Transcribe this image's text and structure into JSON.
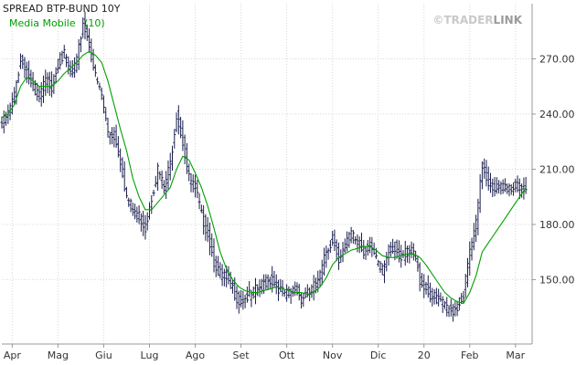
{
  "chart_data": {
    "type": "line",
    "title": "SPREAD BTP-BUND 10Y",
    "watermark": {
      "prefix": "©TRADER",
      "suffix": "LINK"
    },
    "legend": [
      {
        "name": "Media Mobile",
        "param": "(10)",
        "color": "#00a000"
      }
    ],
    "price_color": "#1a1f4d",
    "ma_color": "#00a000",
    "ylim": [
      115,
      300
    ],
    "yticks": [
      150,
      180,
      210,
      240,
      270
    ],
    "ytick_labels": [
      "150.00",
      "180.00",
      "210.00",
      "240.00",
      "270.00"
    ],
    "xtick_labels": [
      "Apr",
      "Mag",
      "Giu",
      "Lug",
      "Ago",
      "Set",
      "Ott",
      "Nov",
      "Dic",
      "20",
      "Feb",
      "Mar"
    ],
    "xtick_index": [
      5,
      27,
      49,
      71,
      93,
      115,
      137,
      159,
      181,
      203,
      225,
      247
    ],
    "x": [
      0,
      3,
      6,
      9,
      12,
      15,
      18,
      21,
      24,
      27,
      30,
      33,
      36,
      39,
      42,
      45,
      48,
      51,
      54,
      57,
      60,
      63,
      66,
      69,
      72,
      75,
      78,
      81,
      84,
      87,
      90,
      93,
      96,
      99,
      102,
      105,
      108,
      111,
      114,
      117,
      120,
      123,
      126,
      129,
      132,
      135,
      138,
      141,
      144,
      147,
      150,
      153,
      156,
      159,
      162,
      165,
      168,
      171,
      174,
      177,
      180,
      183,
      186,
      189,
      192,
      195,
      198,
      201,
      204,
      207,
      210,
      213,
      216,
      219,
      222,
      225,
      228,
      231,
      234,
      237,
      240,
      243,
      246,
      249,
      252
    ],
    "price": [
      235,
      240,
      250,
      270,
      262,
      255,
      250,
      258,
      255,
      268,
      272,
      262,
      268,
      290,
      278,
      260,
      250,
      230,
      228,
      215,
      195,
      188,
      185,
      178,
      195,
      210,
      200,
      213,
      240,
      225,
      205,
      200,
      185,
      175,
      160,
      153,
      152,
      145,
      138,
      140,
      142,
      145,
      148,
      150,
      147,
      143,
      142,
      145,
      140,
      142,
      146,
      152,
      165,
      172,
      162,
      168,
      175,
      170,
      165,
      170,
      160,
      155,
      165,
      168,
      162,
      165,
      165,
      150,
      145,
      140,
      140,
      135,
      133,
      135,
      142,
      165,
      180,
      212,
      203,
      200,
      200,
      200,
      200,
      200,
      200
    ],
    "ma": [
      238,
      240,
      245,
      255,
      260,
      258,
      255,
      255,
      255,
      258,
      262,
      265,
      268,
      272,
      274,
      272,
      268,
      258,
      245,
      232,
      220,
      205,
      195,
      188,
      188,
      192,
      196,
      200,
      210,
      217,
      215,
      208,
      200,
      190,
      178,
      165,
      156,
      150,
      146,
      144,
      143,
      143,
      144,
      145,
      146,
      145,
      144,
      143,
      143,
      142,
      143,
      146,
      151,
      158,
      162,
      164,
      166,
      167,
      168,
      168,
      166,
      163,
      162,
      162,
      163,
      164,
      164,
      162,
      158,
      153,
      148,
      143,
      140,
      138,
      137,
      143,
      152,
      165,
      170,
      175,
      180,
      185,
      190,
      195,
      200
    ]
  }
}
